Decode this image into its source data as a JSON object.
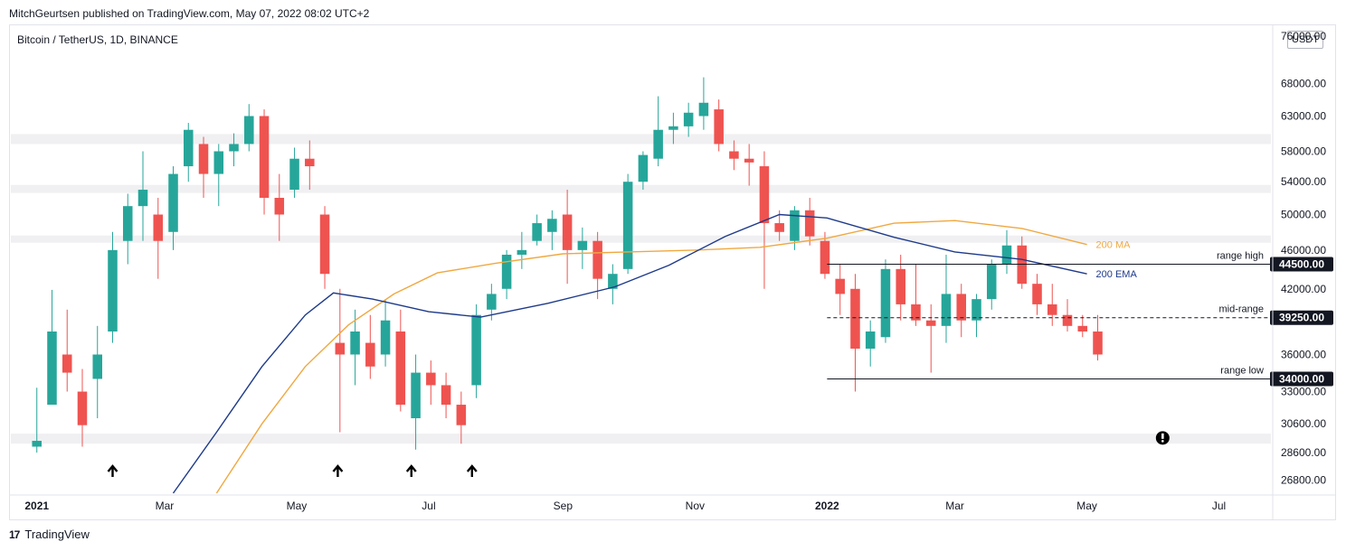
{
  "header": {
    "publisher": "MitchGeurtsen published on TradingView.com, May 07, 2022 08:02 UTC+2"
  },
  "symbol": {
    "label": "Bitcoin / TetherUS, 1D, BINANCE"
  },
  "currency": "USDT",
  "footer": {
    "brand": "TradingView"
  },
  "colors": {
    "up": "#26a69a",
    "down": "#ef5350",
    "ma": "#f0a840",
    "ema": "#1e3a8a",
    "zone": "#f0f0f2"
  },
  "chart_data": {
    "type": "candlestick",
    "timeframe": "1D",
    "price_axis": {
      "ticks": [
        "76000.00",
        "68000.00",
        "63000.00",
        "58000.00",
        "54000.00",
        "50000.00",
        "46000.00",
        "42000.00",
        "39250.00",
        "36000.00",
        "33000.00",
        "30600.00",
        "28600.00",
        "26800.00"
      ],
      "ylim": [
        26000,
        76000
      ],
      "scale": "log"
    },
    "time_axis": {
      "ticks": [
        {
          "label": "2021",
          "date": "2021-01-01",
          "bold": true
        },
        {
          "label": "Mar",
          "date": "2021-03-01",
          "bold": false
        },
        {
          "label": "May",
          "date": "2021-05-01",
          "bold": false
        },
        {
          "label": "Jul",
          "date": "2021-07-01",
          "bold": false
        },
        {
          "label": "Sep",
          "date": "2021-09-01",
          "bold": false
        },
        {
          "label": "Nov",
          "date": "2021-11-01",
          "bold": false
        },
        {
          "label": "2022",
          "date": "2022-01-01",
          "bold": true
        },
        {
          "label": "Mar",
          "date": "2022-03-01",
          "bold": false
        },
        {
          "label": "May",
          "date": "2022-05-01",
          "bold": false
        },
        {
          "label": "Jul",
          "date": "2022-07-01",
          "bold": false
        }
      ]
    },
    "zones": [
      {
        "from": 59000,
        "to": 60400
      },
      {
        "from": 52600,
        "to": 53600
      },
      {
        "from": 46800,
        "to": 47600
      },
      {
        "from": 29200,
        "to": 29900
      }
    ],
    "levels": [
      {
        "name": "range high",
        "value": 44500,
        "tag": "44500.00",
        "style": "solid",
        "start": "2022-01-01"
      },
      {
        "name": "mid-range",
        "value": 39250,
        "tag": "39250.00",
        "style": "dashed",
        "start": "2022-01-01"
      },
      {
        "name": "range low",
        "value": 34000,
        "tag": "34000.00",
        "style": "solid",
        "start": "2022-01-01"
      }
    ],
    "series": [
      {
        "name": "200 MA",
        "color": "#f0a840",
        "points": [
          [
            "2021-03-25",
            26000
          ],
          [
            "2021-04-15",
            30600
          ],
          [
            "2021-05-05",
            35000
          ],
          [
            "2021-05-25",
            38600
          ],
          [
            "2021-06-15",
            41500
          ],
          [
            "2021-07-05",
            43600
          ],
          [
            "2021-08-01",
            44600
          ],
          [
            "2021-09-01",
            45600
          ],
          [
            "2021-10-01",
            45800
          ],
          [
            "2021-11-01",
            46000
          ],
          [
            "2021-12-01",
            46300
          ],
          [
            "2022-01-01",
            47300
          ],
          [
            "2022-02-01",
            49000
          ],
          [
            "2022-03-01",
            49300
          ],
          [
            "2022-04-01",
            48400
          ],
          [
            "2022-05-01",
            46600
          ]
        ]
      },
      {
        "name": "200 EMA",
        "color": "#1e3a8a",
        "points": [
          [
            "2021-03-05",
            26000
          ],
          [
            "2021-03-25",
            30000
          ],
          [
            "2021-04-15",
            35000
          ],
          [
            "2021-05-05",
            39500
          ],
          [
            "2021-05-18",
            41600
          ],
          [
            "2021-06-05",
            41000
          ],
          [
            "2021-07-01",
            39800
          ],
          [
            "2021-07-25",
            39300
          ],
          [
            "2021-08-25",
            40600
          ],
          [
            "2021-09-25",
            42200
          ],
          [
            "2021-10-20",
            44400
          ],
          [
            "2021-11-15",
            47500
          ],
          [
            "2021-12-10",
            50000
          ],
          [
            "2022-01-01",
            49600
          ],
          [
            "2022-02-01",
            47400
          ],
          [
            "2022-03-01",
            45800
          ],
          [
            "2022-04-01",
            45000
          ],
          [
            "2022-05-01",
            43500
          ]
        ]
      }
    ],
    "candles_ohlc": [
      [
        "2021-01-01",
        29000,
        33300,
        28600,
        29400
      ],
      [
        "2021-01-08",
        32000,
        41900,
        34000,
        38000
      ],
      [
        "2021-01-15",
        36000,
        40000,
        33000,
        34500
      ],
      [
        "2021-01-22",
        33000,
        34800,
        29000,
        30500
      ],
      [
        "2021-01-29",
        34000,
        38500,
        31000,
        36000
      ],
      [
        "2021-02-05",
        38000,
        48000,
        37000,
        46000
      ],
      [
        "2021-02-12",
        47000,
        52500,
        44500,
        51000
      ],
      [
        "2021-02-19",
        51000,
        58000,
        47000,
        53000
      ],
      [
        "2021-02-26",
        50000,
        52000,
        43000,
        47000
      ],
      [
        "2021-03-05",
        48000,
        56000,
        46000,
        55000
      ],
      [
        "2021-03-12",
        56000,
        62000,
        54000,
        61000
      ],
      [
        "2021-03-19",
        59000,
        60000,
        52000,
        55000
      ],
      [
        "2021-03-26",
        55000,
        59000,
        51000,
        58000
      ],
      [
        "2021-04-02",
        58000,
        60500,
        56000,
        59000
      ],
      [
        "2021-04-09",
        59000,
        64800,
        58000,
        63000
      ],
      [
        "2021-04-16",
        63000,
        64000,
        50000,
        52000
      ],
      [
        "2021-04-23",
        52000,
        55000,
        47000,
        50000
      ],
      [
        "2021-04-30",
        53000,
        58500,
        52000,
        57000
      ],
      [
        "2021-05-07",
        57000,
        59500,
        53000,
        56000
      ],
      [
        "2021-05-14",
        50000,
        51000,
        42000,
        43500
      ],
      [
        "2021-05-21",
        37000,
        42000,
        30000,
        36000
      ],
      [
        "2021-05-28",
        36000,
        40000,
        33500,
        38000
      ],
      [
        "2021-06-04",
        37000,
        39500,
        34000,
        35000
      ],
      [
        "2021-06-11",
        36000,
        41000,
        35000,
        39000
      ],
      [
        "2021-06-18",
        38000,
        40000,
        31500,
        32000
      ],
      [
        "2021-06-25",
        31000,
        36000,
        28800,
        34500
      ],
      [
        "2021-07-02",
        34500,
        35500,
        32000,
        33500
      ],
      [
        "2021-07-09",
        33500,
        34500,
        31000,
        32000
      ],
      [
        "2021-07-16",
        32000,
        33000,
        29200,
        30500
      ],
      [
        "2021-07-23",
        33500,
        40500,
        32500,
        39500
      ],
      [
        "2021-07-30",
        40000,
        42500,
        39000,
        41500
      ],
      [
        "2021-08-06",
        42000,
        46000,
        41000,
        45500
      ],
      [
        "2021-08-13",
        45500,
        48000,
        44000,
        46000
      ],
      [
        "2021-08-20",
        47000,
        50000,
        46500,
        49000
      ],
      [
        "2021-08-27",
        48000,
        50500,
        46000,
        49500
      ],
      [
        "2021-09-03",
        50000,
        53000,
        42500,
        46000
      ],
      [
        "2021-09-10",
        46000,
        48500,
        44000,
        47000
      ],
      [
        "2021-09-17",
        47000,
        48000,
        41000,
        43000
      ],
      [
        "2021-09-24",
        42000,
        44500,
        40500,
        43500
      ],
      [
        "2021-10-01",
        44000,
        55000,
        43500,
        54000
      ],
      [
        "2021-10-08",
        54000,
        58000,
        53000,
        57500
      ],
      [
        "2021-10-15",
        57000,
        66000,
        56000,
        61000
      ],
      [
        "2021-10-22",
        61000,
        63500,
        59000,
        61500
      ],
      [
        "2021-10-29",
        61500,
        65000,
        60000,
        63500
      ],
      [
        "2021-11-05",
        63000,
        69000,
        61000,
        65000
      ],
      [
        "2021-11-12",
        64000,
        65500,
        58000,
        59000
      ],
      [
        "2021-11-19",
        58000,
        59500,
        55500,
        57000
      ],
      [
        "2021-11-26",
        57000,
        59000,
        53500,
        56500
      ],
      [
        "2021-12-03",
        56000,
        58000,
        42000,
        49000
      ],
      [
        "2021-12-10",
        49000,
        50500,
        47000,
        48000
      ],
      [
        "2021-12-17",
        47000,
        51000,
        46000,
        50500
      ],
      [
        "2021-12-24",
        50500,
        52000,
        46500,
        47500
      ],
      [
        "2021-12-31",
        47000,
        48000,
        43000,
        43500
      ],
      [
        "2022-01-07",
        43000,
        44500,
        39500,
        41500
      ],
      [
        "2022-01-14",
        42000,
        43500,
        33000,
        36500
      ],
      [
        "2022-01-21",
        36500,
        39000,
        35000,
        38000
      ],
      [
        "2022-01-28",
        37500,
        45000,
        37000,
        44000
      ],
      [
        "2022-02-04",
        44000,
        45500,
        39000,
        40500
      ],
      [
        "2022-02-11",
        40500,
        44500,
        38500,
        39000
      ],
      [
        "2022-02-18",
        39000,
        40500,
        34500,
        38500
      ],
      [
        "2022-02-25",
        38500,
        45500,
        37000,
        41500
      ],
      [
        "2022-03-04",
        41500,
        42500,
        37500,
        39000
      ],
      [
        "2022-03-11",
        39000,
        41500,
        37500,
        41000
      ],
      [
        "2022-03-18",
        41000,
        45000,
        40000,
        44500
      ],
      [
        "2022-03-25",
        44500,
        48200,
        43500,
        46500
      ],
      [
        "2022-04-01",
        46500,
        47500,
        42000,
        42500
      ],
      [
        "2022-04-08",
        42500,
        43500,
        39500,
        40500
      ],
      [
        "2022-04-15",
        40500,
        42500,
        38500,
        39500
      ],
      [
        "2022-04-22",
        39500,
        41000,
        38000,
        38500
      ],
      [
        "2022-04-29",
        38500,
        39500,
        37500,
        38000
      ],
      [
        "2022-05-06",
        38000,
        39500,
        35500,
        36000
      ]
    ],
    "markers": [
      {
        "type": "arrow-up",
        "date": "2021-02-05"
      },
      {
        "type": "arrow-up",
        "date": "2021-05-20"
      },
      {
        "type": "arrow-up",
        "date": "2021-06-23"
      },
      {
        "type": "arrow-up",
        "date": "2021-07-21"
      }
    ],
    "alert": {
      "type": "exclamation",
      "date": "2022-06-05"
    }
  }
}
